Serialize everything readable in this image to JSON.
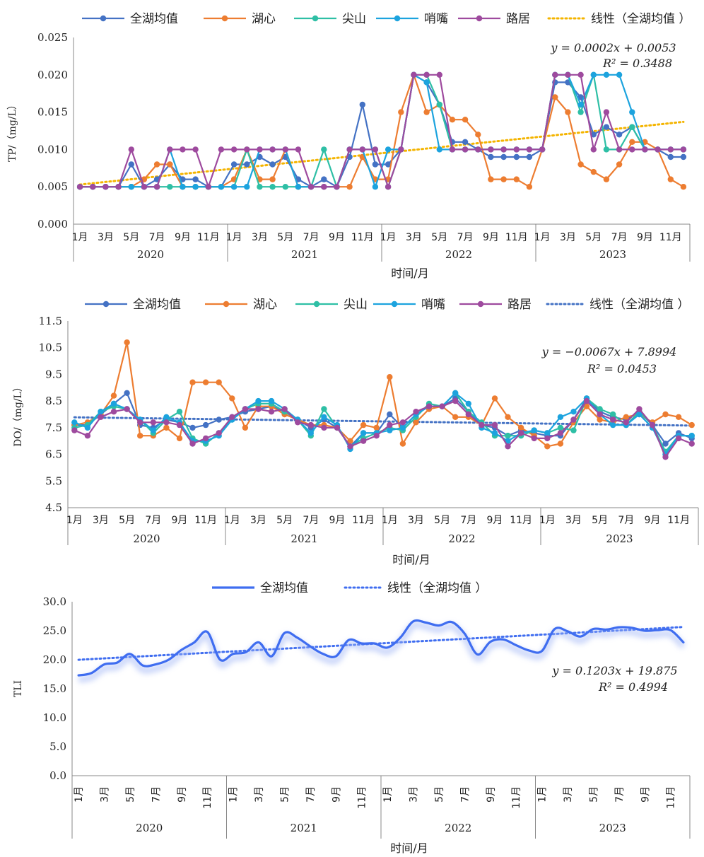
{
  "chart_data": [
    {
      "type": "line",
      "ylabel": "TP/（mg/L）",
      "xlabel": "时间/月",
      "ylim": [
        0,
        0.025
      ],
      "yticks": [
        "0.000",
        "0.005",
        "0.010",
        "0.015",
        "0.020",
        "0.025"
      ],
      "month_ticks": [
        "1月",
        "3月",
        "5月",
        "7月",
        "9月",
        "11月"
      ],
      "years": [
        "2020",
        "2021",
        "2022",
        "2023"
      ],
      "series": [
        {
          "name": "全湖均值",
          "color": "#4472C4",
          "values": [
            0.005,
            0.005,
            0.005,
            0.005,
            0.008,
            0.005,
            0.006,
            0.008,
            0.006,
            0.006,
            0.005,
            0.005,
            0.008,
            0.008,
            0.009,
            0.008,
            0.009,
            0.006,
            0.005,
            0.006,
            0.005,
            0.009,
            0.016,
            0.008,
            0.008,
            0.01,
            0.02,
            0.019,
            0.016,
            0.011,
            0.011,
            0.01,
            0.009,
            0.009,
            0.009,
            0.009,
            0.01,
            0.019,
            0.019,
            0.017,
            0.012,
            0.013,
            0.012,
            0.013,
            0.01,
            0.01,
            0.009,
            0.009
          ]
        },
        {
          "name": "湖心",
          "color": "#ED7D31",
          "values": [
            0.005,
            0.005,
            0.005,
            0.005,
            0.005,
            0.006,
            0.008,
            0.008,
            0.005,
            0.005,
            0.005,
            0.005,
            0.006,
            0.01,
            0.006,
            0.006,
            0.01,
            0.005,
            0.005,
            0.005,
            0.005,
            0.005,
            0.009,
            0.006,
            0.006,
            0.015,
            0.02,
            0.015,
            0.016,
            0.014,
            0.014,
            0.012,
            0.006,
            0.006,
            0.006,
            0.005,
            0.01,
            0.017,
            0.015,
            0.008,
            0.007,
            0.006,
            0.008,
            0.011,
            0.011,
            0.01,
            0.006,
            0.005
          ]
        },
        {
          "name": "尖山",
          "color": "#2EBFA5",
          "values": [
            0.005,
            0.005,
            0.005,
            0.005,
            0.005,
            0.005,
            0.005,
            0.005,
            0.005,
            0.005,
            0.005,
            0.005,
            0.005,
            0.01,
            0.005,
            0.005,
            0.005,
            0.005,
            0.005,
            0.01,
            0.005,
            0.01,
            0.01,
            0.01,
            0.005,
            0.01,
            0.02,
            0.02,
            0.016,
            0.01,
            0.01,
            0.01,
            0.01,
            0.01,
            0.01,
            0.01,
            0.01,
            0.02,
            0.02,
            0.015,
            0.02,
            0.01,
            0.01,
            0.013,
            0.01,
            0.01,
            0.01,
            0.01
          ]
        },
        {
          "name": "哨嘴",
          "color": "#1CA3DE",
          "values": [
            0.005,
            0.005,
            0.005,
            0.005,
            0.005,
            0.005,
            0.005,
            0.01,
            0.005,
            0.005,
            0.005,
            0.005,
            0.005,
            0.005,
            0.01,
            0.01,
            0.01,
            0.005,
            0.005,
            0.005,
            0.005,
            0.01,
            0.01,
            0.005,
            0.01,
            0.01,
            0.02,
            0.019,
            0.01,
            0.01,
            0.01,
            0.01,
            0.01,
            0.01,
            0.01,
            0.01,
            0.01,
            0.02,
            0.02,
            0.016,
            0.02,
            0.02,
            0.02,
            0.015,
            0.01,
            0.01,
            0.01,
            0.01
          ]
        },
        {
          "name": "路居",
          "color": "#9E4A9E",
          "values": [
            0.005,
            0.005,
            0.005,
            0.005,
            0.01,
            0.005,
            0.005,
            0.01,
            0.01,
            0.01,
            0.005,
            0.01,
            0.01,
            0.01,
            0.01,
            0.01,
            0.01,
            0.01,
            0.005,
            0.005,
            0.005,
            0.01,
            0.01,
            0.01,
            0.005,
            0.01,
            0.02,
            0.02,
            0.02,
            0.01,
            0.01,
            0.01,
            0.01,
            0.01,
            0.01,
            0.01,
            0.01,
            0.02,
            0.02,
            0.02,
            0.01,
            0.015,
            0.01,
            0.01,
            0.01,
            0.01,
            0.01,
            0.01
          ]
        }
      ],
      "trend": {
        "name": "线性（全湖均值 ）",
        "color": "#F4B400",
        "start": 0.0053,
        "end": 0.0137
      },
      "equation": "y = 0.0002x + 0.0053",
      "r2": "R² = 0.3488"
    },
    {
      "type": "line",
      "ylabel": "DO/（mg/L）",
      "xlabel": "时间/月",
      "ylim": [
        4.5,
        11.5
      ],
      "yticks": [
        "4.5",
        "5.5",
        "6.5",
        "7.5",
        "8.5",
        "9.5",
        "10.5",
        "11.5"
      ],
      "month_ticks": [
        "1月",
        "3月",
        "5月",
        "7月",
        "9月",
        "11月"
      ],
      "years": [
        "2020",
        "2021",
        "2022",
        "2023"
      ],
      "series": [
        {
          "name": "全湖均值",
          "color": "#4472C4",
          "values": [
            7.6,
            7.6,
            8.0,
            8.4,
            8.8,
            7.6,
            7.5,
            7.8,
            7.7,
            7.5,
            7.6,
            7.8,
            7.9,
            8.1,
            8.2,
            8.3,
            8.1,
            7.8,
            7.5,
            7.8,
            7.5,
            6.8,
            7.3,
            7.3,
            8.0,
            7.5,
            8.0,
            8.3,
            8.3,
            8.6,
            8.1,
            7.6,
            7.5,
            7.2,
            7.4,
            7.3,
            7.2,
            7.2,
            7.8,
            8.6,
            8.1,
            7.9,
            7.8,
            8.1,
            7.6,
            6.9,
            7.3,
            7.1
          ]
        },
        {
          "name": "湖心",
          "color": "#ED7D31",
          "values": [
            7.6,
            7.7,
            8.0,
            8.7,
            10.7,
            7.2,
            7.2,
            7.5,
            7.1,
            9.2,
            9.2,
            9.2,
            8.6,
            7.5,
            8.3,
            8.3,
            8.0,
            7.8,
            7.6,
            7.6,
            7.5,
            7.0,
            7.6,
            7.5,
            9.4,
            6.9,
            7.7,
            8.2,
            8.3,
            7.9,
            7.9,
            7.6,
            8.6,
            7.9,
            7.5,
            7.2,
            6.8,
            6.9,
            7.7,
            8.3,
            7.8,
            7.7,
            7.9,
            8.0,
            7.7,
            8.0,
            7.9,
            7.6
          ]
        },
        {
          "name": "尖山",
          "color": "#2EBFA5",
          "values": [
            7.5,
            7.6,
            8.1,
            8.3,
            8.2,
            7.8,
            7.3,
            7.8,
            8.1,
            7.1,
            6.9,
            7.3,
            7.8,
            8.2,
            8.4,
            8.4,
            8.1,
            7.8,
            7.2,
            8.2,
            7.5,
            6.8,
            7.1,
            7.3,
            7.5,
            7.4,
            7.9,
            8.4,
            8.3,
            8.8,
            8.1,
            7.7,
            7.2,
            7.2,
            7.2,
            7.4,
            7.3,
            7.5,
            7.4,
            8.6,
            8.2,
            8.0,
            7.6,
            8.1,
            7.6,
            6.6,
            7.2,
            7.2
          ]
        },
        {
          "name": "哨嘴",
          "color": "#1CA3DE",
          "values": [
            7.7,
            7.5,
            8.1,
            8.4,
            8.2,
            7.8,
            7.4,
            7.9,
            7.7,
            7.0,
            7.0,
            7.2,
            7.8,
            8.2,
            8.5,
            8.5,
            8.2,
            7.8,
            7.3,
            7.9,
            7.6,
            6.7,
            7.3,
            7.3,
            7.4,
            7.5,
            8.0,
            8.3,
            8.3,
            8.8,
            8.4,
            7.5,
            7.3,
            7.0,
            7.3,
            7.4,
            7.3,
            7.9,
            8.1,
            8.6,
            8.0,
            7.6,
            7.6,
            8.0,
            7.5,
            6.5,
            7.2,
            7.2
          ]
        },
        {
          "name": "路居",
          "color": "#9E4A9E",
          "values": [
            7.4,
            7.2,
            7.9,
            8.1,
            8.2,
            7.7,
            7.7,
            7.7,
            7.6,
            6.9,
            7.1,
            7.3,
            7.9,
            8.2,
            8.2,
            8.1,
            8.2,
            7.7,
            7.6,
            7.5,
            7.5,
            6.8,
            7.0,
            7.2,
            7.6,
            7.7,
            8.1,
            8.3,
            8.3,
            8.5,
            8.0,
            7.6,
            7.6,
            6.8,
            7.3,
            7.1,
            7.1,
            7.3,
            7.8,
            8.5,
            8.0,
            7.8,
            7.7,
            8.2,
            7.6,
            6.4,
            7.1,
            6.9
          ]
        }
      ],
      "trend": {
        "name": "线性（全湖均值 ）",
        "color": "#4472C4",
        "start": 7.89,
        "end": 7.58
      },
      "equation": "y = −0.0067x + 7.8994",
      "r2": "R² = 0.0453"
    },
    {
      "type": "line",
      "ylabel": "TLI",
      "xlabel": "时间/月",
      "ylim": [
        0,
        30
      ],
      "yticks": [
        "0.0",
        "5.0",
        "10.0",
        "15.0",
        "20.0",
        "25.0",
        "30.0"
      ],
      "month_ticks": [
        "1月",
        "3月",
        "5月",
        "7月",
        "9月",
        "11月"
      ],
      "years": [
        "2020",
        "2021",
        "2022",
        "2023"
      ],
      "series": [
        {
          "name": "全湖均值",
          "color": "#3F6DF0",
          "values": [
            17.3,
            17.7,
            19.2,
            19.5,
            21.0,
            19.0,
            19.2,
            20.0,
            21.7,
            23.0,
            24.8,
            20.0,
            21.0,
            21.3,
            23.0,
            20.6,
            24.6,
            23.8,
            22.3,
            21.0,
            20.6,
            23.4,
            22.8,
            22.8,
            22.1,
            23.8,
            26.6,
            26.4,
            25.9,
            26.5,
            24.5,
            20.9,
            23.1,
            23.5,
            22.5,
            21.6,
            21.5,
            25.3,
            24.9,
            24.0,
            25.3,
            25.2,
            25.6,
            25.5,
            25.0,
            25.1,
            25.1,
            23.0
          ]
        }
      ],
      "trend": {
        "name": "线性（全湖均值 ）",
        "color": "#3F6DF0",
        "start": 19.99,
        "end": 25.65
      },
      "equation": "y = 0.1203x + 19.875",
      "r2": "R² = 0.4994"
    }
  ]
}
